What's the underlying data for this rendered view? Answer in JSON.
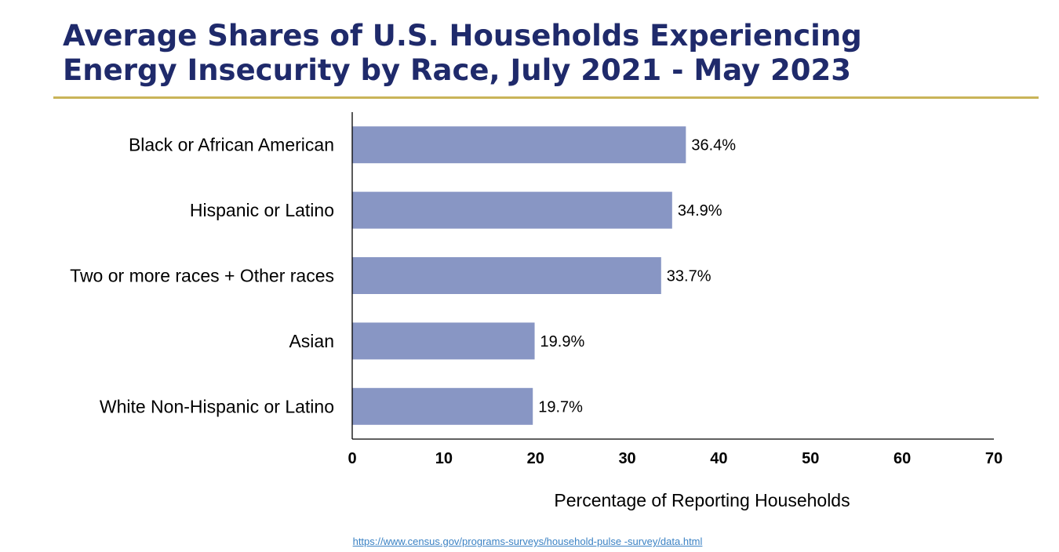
{
  "header": {
    "title_line1": "Average Shares of U.S. Households Experiencing",
    "title_line2": "Energy Insecurity by Race, July 2021 - May 2023"
  },
  "colors": {
    "title": "#1f2a6b",
    "rule": "#c9b458",
    "bar": "#8896c4",
    "axis": "#000000",
    "text": "#000000",
    "link": "#3b82c4"
  },
  "chart_data": {
    "type": "bar",
    "orientation": "horizontal",
    "title": "Average Shares of U.S. Households Experiencing Energy Insecurity by Race, July 2021 - May 2023",
    "categories": [
      "Black or African American",
      "Hispanic or Latino",
      "Two or more races + Other races",
      "Asian",
      "White Non-Hispanic or Latino"
    ],
    "values": [
      36.4,
      34.9,
      33.7,
      19.9,
      19.7
    ],
    "value_labels": [
      "36.4%",
      "34.9%",
      "33.7%",
      "19.9%",
      "19.7%"
    ],
    "xlabel": "Percentage of Reporting Households",
    "ylabel": "",
    "xlim": [
      0,
      70
    ],
    "xticks": [
      0,
      10,
      20,
      30,
      40,
      50,
      60,
      70
    ],
    "grid": false,
    "legend": "none"
  },
  "footer": {
    "source_url": "https://www.census.gov/programs-surveys/household-pulse -survey/data.html"
  }
}
